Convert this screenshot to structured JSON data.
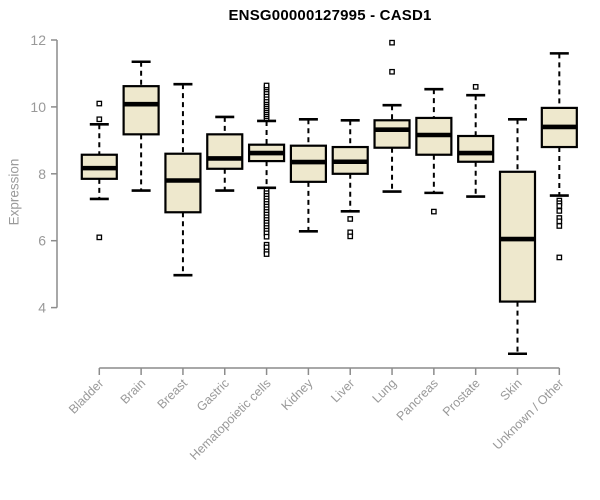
{
  "chart_data": {
    "type": "boxplot",
    "title": "ENSG00000127995 - CASD1",
    "ylabel": "Expression",
    "xlabel": "",
    "ylim": [
      2.5,
      12
    ],
    "yticks": [
      4,
      6,
      8,
      10,
      12
    ],
    "grid": false,
    "legend": "none",
    "colors": {
      "box_fill": "#EEE8CD",
      "box_stroke": "#000000",
      "axis_line": "#8c8c8c",
      "tick_text": "#999999",
      "title_text": "#000000",
      "outlier_fill": "#ffffff"
    },
    "categories": [
      "Bladder",
      "Brain",
      "Breast",
      "Gastric",
      "Hematopoietic cells",
      "Kidney",
      "Liver",
      "Lung",
      "Pancreas",
      "Prostate",
      "Skin",
      "Unknown / Other"
    ],
    "boxes": [
      {
        "category": "Bladder",
        "whisker_low": 7.25,
        "q1": 7.85,
        "median": 8.17,
        "q3": 8.57,
        "whisker_high": 9.48,
        "outliers": [
          10.1,
          9.63,
          6.1
        ]
      },
      {
        "category": "Brain",
        "whisker_low": 7.5,
        "q1": 9.18,
        "median": 10.08,
        "q3": 10.62,
        "whisker_high": 11.35,
        "outliers": []
      },
      {
        "category": "Breast",
        "whisker_low": 4.97,
        "q1": 6.85,
        "median": 7.8,
        "q3": 8.6,
        "whisker_high": 10.68,
        "outliers": []
      },
      {
        "category": "Gastric",
        "whisker_low": 7.5,
        "q1": 8.15,
        "median": 8.46,
        "q3": 9.18,
        "whisker_high": 9.7,
        "outliers": []
      },
      {
        "category": "Hematopoietic cells",
        "whisker_low": 7.58,
        "q1": 8.38,
        "median": 8.62,
        "q3": 8.87,
        "whisker_high": 9.58,
        "outliers": [
          9.66,
          9.72,
          9.78,
          9.84,
          9.9,
          9.96,
          10.02,
          10.08,
          10.14,
          10.2,
          10.28,
          10.36,
          10.44,
          10.52,
          10.58,
          10.64,
          7.5,
          7.42,
          7.34,
          7.26,
          7.18,
          7.1,
          7.02,
          6.94,
          6.86,
          6.78,
          6.7,
          6.62,
          6.54,
          6.46,
          6.38,
          6.3,
          6.22,
          6.12,
          5.88,
          5.8,
          5.68,
          5.6
        ]
      },
      {
        "category": "Kidney",
        "whisker_low": 6.28,
        "q1": 7.76,
        "median": 8.35,
        "q3": 8.84,
        "whisker_high": 9.63,
        "outliers": []
      },
      {
        "category": "Liver",
        "whisker_low": 6.88,
        "q1": 8.0,
        "median": 8.36,
        "q3": 8.8,
        "whisker_high": 9.6,
        "outliers": [
          6.65,
          6.25,
          6.13
        ]
      },
      {
        "category": "Lung",
        "whisker_low": 7.47,
        "q1": 8.78,
        "median": 9.32,
        "q3": 9.6,
        "whisker_high": 10.05,
        "outliers": [
          11.92,
          11.05
        ]
      },
      {
        "category": "Pancreas",
        "whisker_low": 7.43,
        "q1": 8.57,
        "median": 9.16,
        "q3": 9.67,
        "whisker_high": 10.53,
        "outliers": [
          6.87
        ]
      },
      {
        "category": "Prostate",
        "whisker_low": 7.32,
        "q1": 8.36,
        "median": 8.62,
        "q3": 9.13,
        "whisker_high": 10.35,
        "outliers": [
          10.6
        ]
      },
      {
        "category": "Skin",
        "whisker_low": 2.62,
        "q1": 4.18,
        "median": 6.05,
        "q3": 8.06,
        "whisker_high": 9.63,
        "outliers": []
      },
      {
        "category": "Unknown / Other",
        "whisker_low": 7.35,
        "q1": 8.8,
        "median": 9.4,
        "q3": 9.97,
        "whisker_high": 11.6,
        "outliers": [
          7.2,
          7.12,
          7.04,
          6.89,
          6.68,
          6.58,
          6.44,
          5.5
        ]
      }
    ]
  }
}
